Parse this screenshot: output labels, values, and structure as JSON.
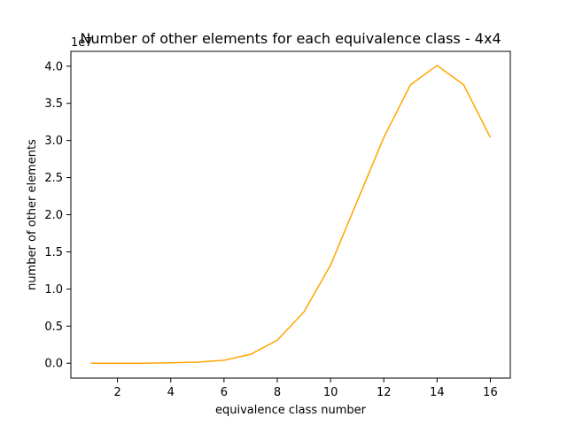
{
  "chart_data": {
    "type": "line",
    "title": "Number of other elements for each equivalence class - 4x4",
    "xlabel": "equivalence class number",
    "ylabel": "number of other elements",
    "offset_text": "1e7",
    "xlim": [
      0.25,
      16.75
    ],
    "ylim": [
      -2000000,
      42000000
    ],
    "x_ticks": [
      2,
      4,
      6,
      8,
      10,
      12,
      14,
      16
    ],
    "x_tick_labels": [
      "2",
      "4",
      "6",
      "8",
      "10",
      "12",
      "14",
      "16"
    ],
    "y_ticks": [
      0,
      5000000,
      10000000,
      15000000,
      20000000,
      25000000,
      30000000,
      35000000,
      40000000
    ],
    "y_tick_labels": [
      "0.0",
      "0.5",
      "1.0",
      "1.5",
      "2.0",
      "2.5",
      "3.0",
      "3.5",
      "4.0"
    ],
    "grid": false,
    "series": [
      {
        "color": "#ffa500",
        "x": [
          1,
          2,
          3,
          4,
          5,
          6,
          7,
          8,
          9,
          10,
          11,
          12,
          13,
          14,
          15,
          16
        ],
        "y": [
          0,
          0,
          0,
          50000,
          150000,
          400000,
          1200000,
          3100000,
          6900000,
          13200000,
          21800000,
          30400000,
          37500000,
          40100000,
          37500000,
          30400000
        ]
      }
    ]
  }
}
